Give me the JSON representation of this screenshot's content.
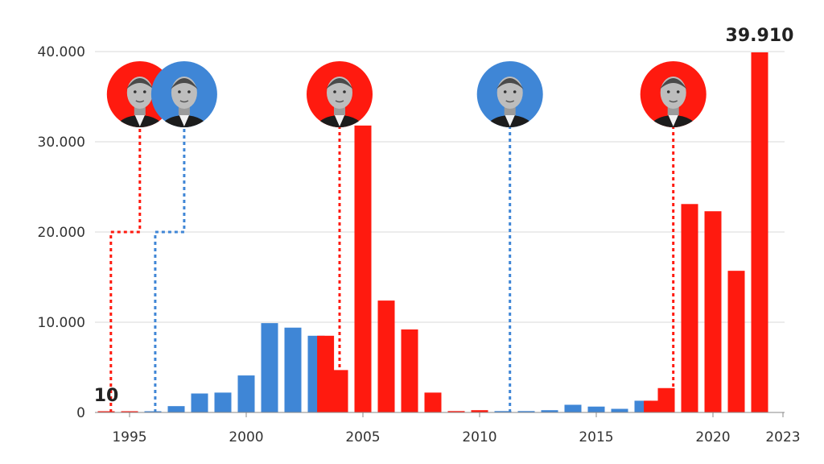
{
  "chart_data": {
    "type": "bar",
    "title": "",
    "xlabel": "",
    "ylabel": "",
    "ylim": [
      0,
      40000
    ],
    "y_ticks": [
      {
        "value": 0,
        "label": "0"
      },
      {
        "value": 10000,
        "label": "10.000"
      },
      {
        "value": 20000,
        "label": "20.000"
      },
      {
        "value": 30000,
        "label": "30.000"
      },
      {
        "value": 40000,
        "label": "40.000"
      }
    ],
    "x_ticks": [
      {
        "year": 1995,
        "label": "1995"
      },
      {
        "year": 2000,
        "label": "2000"
      },
      {
        "year": 2005,
        "label": "2005"
      },
      {
        "year": 2010,
        "label": "2010"
      },
      {
        "year": 2015,
        "label": "2015"
      },
      {
        "year": 2020,
        "label": "2020"
      },
      {
        "year": 2023,
        "label": "2023"
      }
    ],
    "grid": true,
    "colors": {
      "red": "#ff1a0f",
      "blue": "#3f86d6",
      "grid": "#d9d9d9",
      "axis": "#888888"
    },
    "bars": [
      {
        "year": 1994,
        "value": 10,
        "color": "red"
      },
      {
        "year": 1995,
        "value": 20,
        "color": "red"
      },
      {
        "year": 1996,
        "value": 30,
        "color": "blue"
      },
      {
        "year": 1997,
        "value": 700,
        "color": "blue"
      },
      {
        "year": 1998,
        "value": 2100,
        "color": "blue"
      },
      {
        "year": 1999,
        "value": 2200,
        "color": "blue"
      },
      {
        "year": 2000,
        "value": 4100,
        "color": "blue"
      },
      {
        "year": 2001,
        "value": 9900,
        "color": "blue"
      },
      {
        "year": 2002,
        "value": 9400,
        "color": "blue"
      },
      {
        "year": 2003,
        "value": 8500,
        "color": "blue"
      },
      {
        "year": 2003.4,
        "value": 8500,
        "color": "red"
      },
      {
        "year": 2004,
        "value": 4700,
        "color": "red"
      },
      {
        "year": 2005,
        "value": 31800,
        "color": "red"
      },
      {
        "year": 2006,
        "value": 12400,
        "color": "red"
      },
      {
        "year": 2007,
        "value": 9200,
        "color": "red"
      },
      {
        "year": 2008,
        "value": 2200,
        "color": "red"
      },
      {
        "year": 2009,
        "value": 150,
        "color": "red"
      },
      {
        "year": 2010,
        "value": 250,
        "color": "red"
      },
      {
        "year": 2011,
        "value": 150,
        "color": "blue"
      },
      {
        "year": 2012,
        "value": 150,
        "color": "blue"
      },
      {
        "year": 2013,
        "value": 250,
        "color": "blue"
      },
      {
        "year": 2014,
        "value": 850,
        "color": "blue"
      },
      {
        "year": 2015,
        "value": 650,
        "color": "blue"
      },
      {
        "year": 2016,
        "value": 400,
        "color": "blue"
      },
      {
        "year": 2017,
        "value": 1300,
        "color": "blue"
      },
      {
        "year": 2017.4,
        "value": 1300,
        "color": "red"
      },
      {
        "year": 2018,
        "value": 2700,
        "color": "red"
      },
      {
        "year": 2019,
        "value": 23100,
        "color": "red"
      },
      {
        "year": 2020,
        "value": 22300,
        "color": "red"
      },
      {
        "year": 2021,
        "value": 15700,
        "color": "red"
      },
      {
        "year": 2022,
        "value": 39910,
        "color": "red"
      }
    ],
    "value_labels": [
      {
        "year": 1994,
        "label": "10"
      },
      {
        "year": 2022,
        "label": "39.910"
      }
    ],
    "government_markers": [
      {
        "year": 1994.2,
        "color": "red",
        "portrait": "felipe-gonzalez-portrait",
        "step_level": 20000
      },
      {
        "year": 1996.1,
        "color": "blue",
        "portrait": "jose-maria-aznar-portrait",
        "step_level": 20000
      },
      {
        "year": 2004,
        "color": "red",
        "portrait": "jose-luis-rodriguez-zapatero-portrait",
        "step_level": null
      },
      {
        "year": 2011.3,
        "color": "blue",
        "portrait": "mariano-rajoy-portrait",
        "step_level": null
      },
      {
        "year": 2018.3,
        "color": "red",
        "portrait": "pedro-sanchez-portrait",
        "step_level": null
      }
    ]
  }
}
